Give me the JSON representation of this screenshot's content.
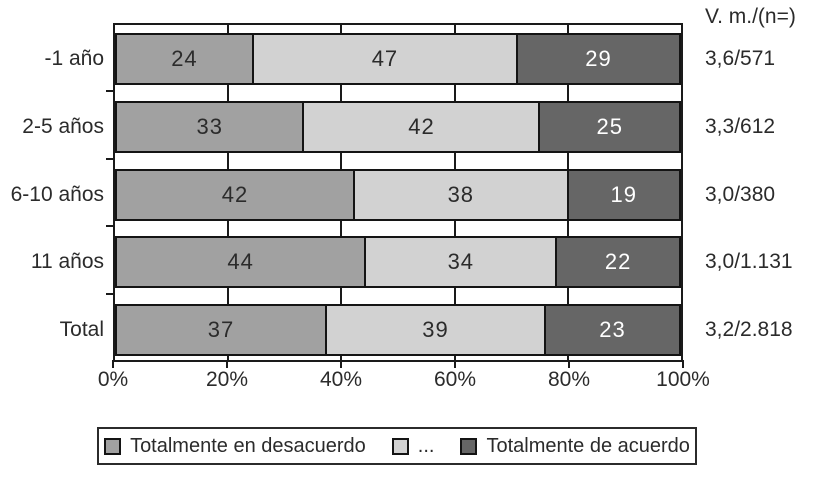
{
  "chart_data": {
    "type": "bar",
    "orientation": "horizontal-stacked",
    "title": "",
    "categories": [
      "-1 año",
      "2-5 años",
      "6-10 años",
      "11 años",
      "Total"
    ],
    "series": [
      {
        "name": "Totalmente en desacuerdo",
        "color": "#a1a1a1",
        "text_color": "#2b2b2b",
        "values": [
          24,
          33,
          42,
          44,
          37
        ]
      },
      {
        "name": "...",
        "color": "#d2d2d2",
        "text_color": "#2b2b2b",
        "values": [
          47,
          42,
          38,
          34,
          39
        ]
      },
      {
        "name": "Totalmente de acuerdo",
        "color": "#666666",
        "text_color": "#ffffff",
        "values": [
          29,
          25,
          19,
          22,
          23
        ]
      }
    ],
    "right_column": {
      "header": "V. m./(n=)",
      "values": [
        "3,6/571",
        "3,3/612",
        "3,0/380",
        "3,0/1.131",
        "3,2/2.818"
      ]
    },
    "x_ticks": [
      "0%",
      "20%",
      "40%",
      "60%",
      "80%",
      "100%"
    ],
    "xlim": [
      0,
      100
    ],
    "grid": "vertical-at-20pct-steps",
    "legend_position": "bottom",
    "axis_color": "#1a1a1a",
    "background_color": "#ffffff"
  }
}
